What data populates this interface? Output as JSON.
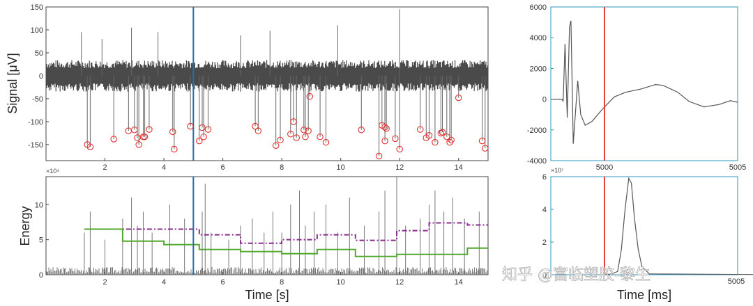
{
  "colors": {
    "signal": "#4a4a4a",
    "marker": "#e03030",
    "cursor_blue": "#1f6fb0",
    "cursor_red": "#e8403a",
    "purple": "#8a2b8f",
    "green": "#4fa82a",
    "right_axis": "#2a95c4"
  },
  "watermark": "知乎 @富临塑胶-黎生",
  "chart_data": [
    {
      "id": "signal",
      "type": "line",
      "ylabel": "Signal [μV]",
      "xlim": [
        0,
        15
      ],
      "ylim": [
        -185,
        150
      ],
      "xticks": [
        "2",
        "4",
        "6",
        "8",
        "10",
        "12",
        "14"
      ],
      "yticks": [
        "150",
        "100",
        "50",
        "0",
        "-50",
        "-100",
        "-150"
      ],
      "cursor_x": 5,
      "noise_band": [
        -30,
        30
      ],
      "spikes": [
        [
          1.2,
          95
        ],
        [
          1.4,
          -150
        ],
        [
          1.5,
          -155
        ],
        [
          1.9,
          80
        ],
        [
          2.3,
          -138
        ],
        [
          2.8,
          -120
        ],
        [
          2.9,
          105
        ],
        [
          3.0,
          -118
        ],
        [
          3.1,
          -135
        ],
        [
          3.15,
          -150
        ],
        [
          3.3,
          -133
        ],
        [
          3.35,
          -133
        ],
        [
          3.5,
          -117
        ],
        [
          3.8,
          95
        ],
        [
          4.3,
          -122
        ],
        [
          4.35,
          -160
        ],
        [
          4.9,
          -110
        ],
        [
          5.2,
          -142
        ],
        [
          5.3,
          -113
        ],
        [
          5.35,
          -133
        ],
        [
          5.5,
          -117
        ],
        [
          6.6,
          88
        ],
        [
          7.1,
          -110
        ],
        [
          7.2,
          -120
        ],
        [
          7.6,
          98
        ],
        [
          7.8,
          -152
        ],
        [
          7.95,
          -140
        ],
        [
          8.3,
          -127
        ],
        [
          8.4,
          -100
        ],
        [
          8.5,
          -135
        ],
        [
          8.75,
          -118
        ],
        [
          8.8,
          -133
        ],
        [
          8.9,
          -120
        ],
        [
          8.95,
          -45
        ],
        [
          9.3,
          -133
        ],
        [
          9.5,
          -145
        ],
        [
          9.9,
          110
        ],
        [
          10.7,
          -118
        ],
        [
          11.3,
          -175
        ],
        [
          11.4,
          -108
        ],
        [
          11.5,
          -112
        ],
        [
          11.5,
          -142
        ],
        [
          11.55,
          -115
        ],
        [
          11.85,
          -137
        ],
        [
          12.0,
          145
        ],
        [
          12.0,
          -160
        ],
        [
          12.7,
          -117
        ],
        [
          12.9,
          -135
        ],
        [
          13.0,
          -130
        ],
        [
          13.2,
          -145
        ],
        [
          13.4,
          -125
        ],
        [
          13.45,
          -123
        ],
        [
          13.6,
          -133
        ],
        [
          13.7,
          -145
        ],
        [
          13.75,
          -140
        ],
        [
          14.0,
          -48
        ],
        [
          14.8,
          -142
        ],
        [
          14.9,
          -158
        ]
      ],
      "detections": [
        [
          1.4,
          -150
        ],
        [
          1.5,
          -155
        ],
        [
          2.3,
          -138
        ],
        [
          2.8,
          -120
        ],
        [
          3.0,
          -118
        ],
        [
          3.1,
          -135
        ],
        [
          3.15,
          -150
        ],
        [
          3.3,
          -133
        ],
        [
          3.35,
          -133
        ],
        [
          3.5,
          -117
        ],
        [
          4.3,
          -122
        ],
        [
          4.35,
          -160
        ],
        [
          4.9,
          -110
        ],
        [
          5.2,
          -142
        ],
        [
          5.3,
          -113
        ],
        [
          5.35,
          -133
        ],
        [
          5.5,
          -117
        ],
        [
          7.1,
          -110
        ],
        [
          7.2,
          -120
        ],
        [
          7.8,
          -152
        ],
        [
          7.95,
          -140
        ],
        [
          8.3,
          -127
        ],
        [
          8.4,
          -100
        ],
        [
          8.5,
          -135
        ],
        [
          8.75,
          -118
        ],
        [
          8.8,
          -133
        ],
        [
          8.9,
          -120
        ],
        [
          8.95,
          -45
        ],
        [
          9.3,
          -133
        ],
        [
          9.5,
          -145
        ],
        [
          10.7,
          -118
        ],
        [
          11.3,
          -175
        ],
        [
          11.4,
          -108
        ],
        [
          11.5,
          -112
        ],
        [
          11.5,
          -142
        ],
        [
          11.55,
          -115
        ],
        [
          11.85,
          -137
        ],
        [
          12.0,
          -160
        ],
        [
          12.7,
          -117
        ],
        [
          12.9,
          -135
        ],
        [
          13.0,
          -130
        ],
        [
          13.2,
          -145
        ],
        [
          13.4,
          -125
        ],
        [
          13.45,
          -123
        ],
        [
          13.6,
          -133
        ],
        [
          13.7,
          -145
        ],
        [
          13.75,
          -140
        ],
        [
          14.0,
          -48
        ],
        [
          14.8,
          -142
        ],
        [
          14.9,
          -158
        ]
      ]
    },
    {
      "id": "energy",
      "type": "line",
      "xlabel": "Time [s]",
      "ylabel": "Energy",
      "multiplier": "×10⁴",
      "xlim": [
        0,
        15
      ],
      "ylim": [
        0,
        14
      ],
      "xticks": [
        "2",
        "4",
        "6",
        "8",
        "10",
        "12",
        "14"
      ],
      "yticks": [
        "10",
        "5",
        "0"
      ],
      "cursor_x": 5,
      "spike_heights": [
        [
          1.3,
          6
        ],
        [
          1.5,
          9
        ],
        [
          2.0,
          5
        ],
        [
          2.6,
          8
        ],
        [
          2.9,
          11
        ],
        [
          3.1,
          7
        ],
        [
          3.3,
          9
        ],
        [
          3.6,
          6
        ],
        [
          4.2,
          10
        ],
        [
          4.7,
          8
        ],
        [
          5.3,
          9
        ],
        [
          5.4,
          13
        ],
        [
          5.6,
          6
        ],
        [
          6.2,
          5
        ],
        [
          6.6,
          7
        ],
        [
          7.0,
          8
        ],
        [
          7.4,
          6
        ],
        [
          7.7,
          9
        ],
        [
          8.0,
          6
        ],
        [
          8.3,
          10
        ],
        [
          8.6,
          12
        ],
        [
          8.8,
          7
        ],
        [
          9.1,
          9
        ],
        [
          9.5,
          10
        ],
        [
          9.9,
          6
        ],
        [
          10.3,
          11
        ],
        [
          10.8,
          7
        ],
        [
          11.3,
          9
        ],
        [
          11.5,
          12
        ],
        [
          11.9,
          14
        ],
        [
          12.2,
          7
        ],
        [
          12.7,
          8
        ],
        [
          13.0,
          10
        ],
        [
          13.2,
          12
        ],
        [
          13.5,
          9
        ],
        [
          13.8,
          11
        ],
        [
          14.2,
          8
        ],
        [
          14.7,
          9
        ]
      ],
      "threshold_purple": [
        [
          1.3,
          6.5
        ],
        [
          5.2,
          6.5
        ],
        [
          5.2,
          5.7
        ],
        [
          6.6,
          5.7
        ],
        [
          6.6,
          4.5
        ],
        [
          8.0,
          4.5
        ],
        [
          8.0,
          5.0
        ],
        [
          9.2,
          5.0
        ],
        [
          9.2,
          5.7
        ],
        [
          10.5,
          5.7
        ],
        [
          10.5,
          4.9
        ],
        [
          11.9,
          4.9
        ],
        [
          11.9,
          6.3
        ],
        [
          13.0,
          6.3
        ],
        [
          13.0,
          7.4
        ],
        [
          14.3,
          7.4
        ],
        [
          14.3,
          7.1
        ],
        [
          15.0,
          7.1
        ]
      ],
      "threshold_green": [
        [
          1.3,
          6.5
        ],
        [
          2.6,
          6.5
        ],
        [
          2.6,
          4.8
        ],
        [
          4.0,
          4.8
        ],
        [
          4.0,
          4.3
        ],
        [
          5.2,
          4.3
        ],
        [
          5.2,
          3.6
        ],
        [
          6.6,
          3.6
        ],
        [
          6.6,
          3.3
        ],
        [
          8.0,
          3.3
        ],
        [
          8.0,
          3.0
        ],
        [
          9.2,
          3.0
        ],
        [
          9.2,
          3.6
        ],
        [
          10.5,
          3.6
        ],
        [
          10.5,
          2.6
        ],
        [
          11.9,
          2.6
        ],
        [
          11.9,
          2.9
        ],
        [
          14.3,
          2.9
        ],
        [
          14.3,
          3.8
        ],
        [
          15.0,
          3.8
        ]
      ]
    },
    {
      "id": "waveform",
      "type": "line",
      "xlim": [
        5000,
        5005
      ],
      "ylim": [
        -4000,
        6000
      ],
      "yticks": [
        "6000",
        "4000",
        "2000",
        "0",
        "-2000",
        "-4000"
      ],
      "xticks": [
        "5000",
        "5005"
      ],
      "cursor_x": 5000,
      "points": [
        [
          5000,
          0
        ],
        [
          5000.3,
          0
        ],
        [
          5000.33,
          -150
        ],
        [
          5000.38,
          3600
        ],
        [
          5000.44,
          -1200
        ],
        [
          5000.5,
          4700
        ],
        [
          5000.54,
          5100
        ],
        [
          5000.6,
          -2900
        ],
        [
          5000.72,
          1200
        ],
        [
          5000.8,
          -1000
        ],
        [
          5000.92,
          -1700
        ],
        [
          5001.1,
          -1450
        ],
        [
          5001.4,
          -600
        ],
        [
          5001.7,
          150
        ],
        [
          5002.0,
          450
        ],
        [
          5002.4,
          650
        ],
        [
          5002.8,
          950
        ],
        [
          5003.0,
          900
        ],
        [
          5003.4,
          450
        ],
        [
          5003.7,
          -150
        ],
        [
          5004.1,
          -500
        ],
        [
          5004.5,
          -350
        ],
        [
          5004.8,
          -100
        ],
        [
          5005.0,
          -200
        ]
      ]
    },
    {
      "id": "waveform-energy",
      "type": "line",
      "xlabel": "Time [ms]",
      "multiplier": "×10⁷",
      "xlim": [
        5000,
        5005
      ],
      "ylim": [
        0,
        6
      ],
      "yticks": [
        "6",
        "4",
        "2",
        "0"
      ],
      "xticks": [
        "5005"
      ],
      "cursor_x": 5000,
      "points": [
        [
          5000,
          0
        ],
        [
          5000.2,
          0.05
        ],
        [
          5000.35,
          0.2
        ],
        [
          5000.45,
          1.5
        ],
        [
          5000.55,
          4.0
        ],
        [
          5000.65,
          5.9
        ],
        [
          5000.72,
          5.6
        ],
        [
          5000.8,
          3.5
        ],
        [
          5000.9,
          1.6
        ],
        [
          5001.0,
          0.5
        ],
        [
          5001.2,
          0.05
        ],
        [
          5005.0,
          0
        ]
      ]
    }
  ]
}
